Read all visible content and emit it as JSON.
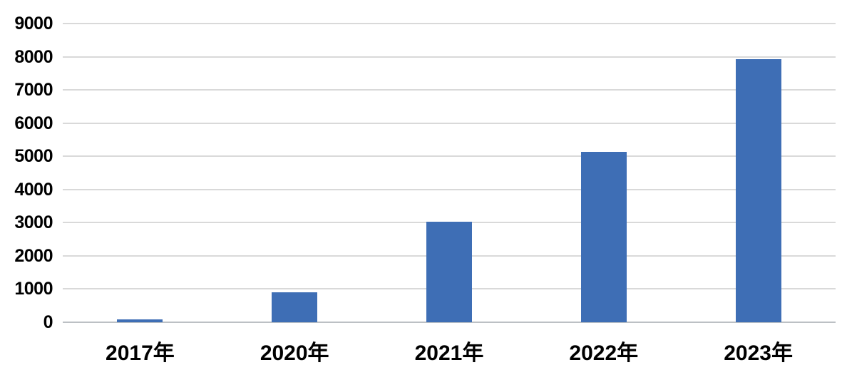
{
  "chart_data": {
    "type": "bar",
    "categories": [
      "2017年",
      "2020年",
      "2021年",
      "2022年",
      "2023年"
    ],
    "values": [
      90,
      900,
      3030,
      5130,
      7930
    ],
    "title": "",
    "xlabel": "",
    "ylabel": "",
    "ylim": [
      0,
      9000
    ],
    "yticks": [
      0,
      1000,
      2000,
      3000,
      4000,
      5000,
      6000,
      7000,
      8000,
      9000
    ],
    "grid": true,
    "legend": false,
    "colors": {
      "bar": "#3E6EB5",
      "gridline": "#D9D9D9",
      "axis_line": "#BCC0C4",
      "text": "#000000",
      "background": "#FFFFFF"
    }
  }
}
